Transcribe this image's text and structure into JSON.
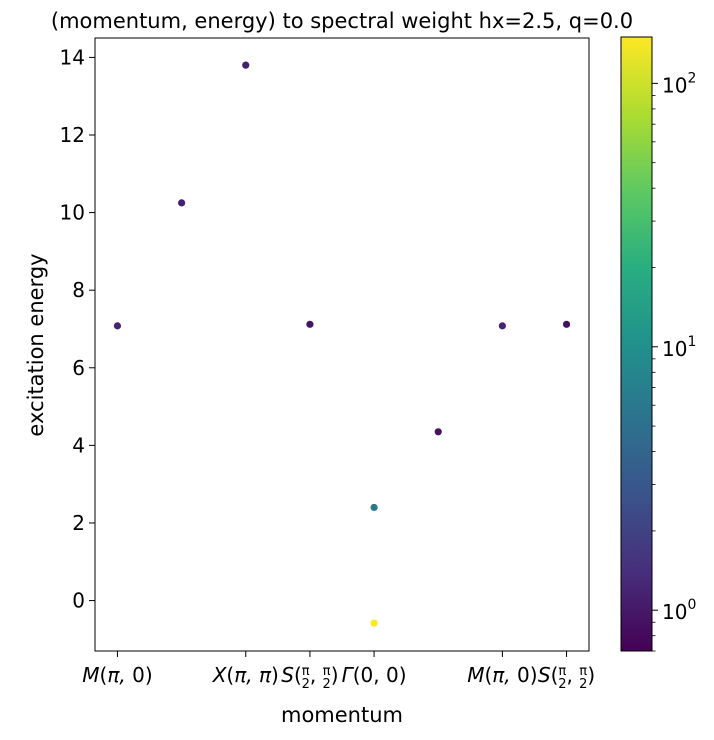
{
  "chart_data": {
    "type": "scatter",
    "title": "(momentum, energy) to spectral weight hx=2.5, q=0.0",
    "xlabel": "momentum",
    "ylabel": "excitation energy",
    "xlim": [
      -0.35,
      7.35
    ],
    "ylim": [
      -1.3,
      14.5
    ],
    "x_ticks": [
      {
        "x": 0,
        "label": "M(π, 0)"
      },
      {
        "x": 2,
        "label": "X(π, π)"
      },
      {
        "x": 3,
        "label": "S(π/2, π/2)"
      },
      {
        "x": 4,
        "label": "Γ(0, 0)"
      },
      {
        "x": 6,
        "label": "M(π, 0)"
      },
      {
        "x": 7,
        "label": "S(π/2, π/2)"
      }
    ],
    "y_ticks": [
      0,
      2,
      4,
      6,
      8,
      10,
      12,
      14
    ],
    "colorbar": {
      "scale": "log",
      "colormap": "viridis",
      "range": [
        0.7,
        150
      ],
      "ticks": [
        {
          "value": 1,
          "label": "10",
          "exp": "0"
        },
        {
          "value": 10,
          "label": "10",
          "exp": "1"
        },
        {
          "value": 100,
          "label": "10",
          "exp": "2"
        }
      ]
    },
    "points": [
      {
        "x": 0,
        "y": 7.08,
        "weight": 1.2
      },
      {
        "x": 1,
        "y": 10.25,
        "weight": 1.1
      },
      {
        "x": 2,
        "y": 13.8,
        "weight": 1.1
      },
      {
        "x": 3,
        "y": 7.12,
        "weight": 0.95
      },
      {
        "x": 4,
        "y": 2.4,
        "weight": 6.0
      },
      {
        "x": 4,
        "y": -0.58,
        "weight": 150
      },
      {
        "x": 5,
        "y": 4.35,
        "weight": 0.9
      },
      {
        "x": 6,
        "y": 7.08,
        "weight": 1.2
      },
      {
        "x": 7,
        "y": 7.12,
        "weight": 0.9
      }
    ]
  }
}
